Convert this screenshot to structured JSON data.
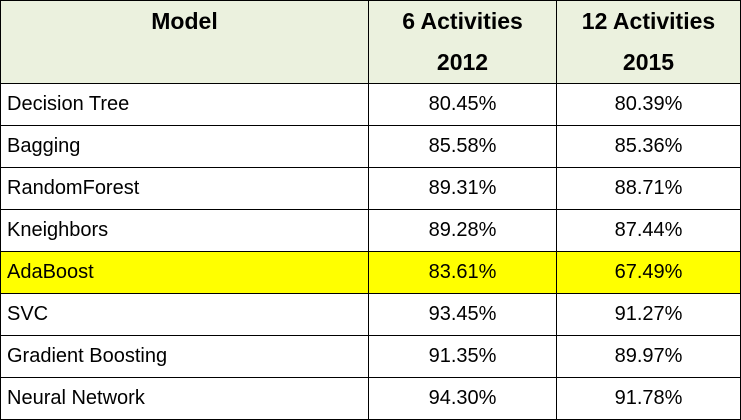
{
  "chart_data": {
    "type": "table",
    "headers": {
      "model": "Model",
      "col1": [
        "6 Activities",
        "2012"
      ],
      "col2": [
        "12 Activities",
        "2015"
      ]
    },
    "rows": [
      {
        "model": "Decision Tree",
        "v1": "80.45%",
        "v2": "80.39%"
      },
      {
        "model": "Bagging",
        "v1": "85.58%",
        "v2": "85.36%"
      },
      {
        "model": "RandomForest",
        "v1": "89.31%",
        "v2": "88.71%"
      },
      {
        "model": "Kneighbors",
        "v1": "89.28%",
        "v2": "87.44%"
      },
      {
        "model": "AdaBoost",
        "v1": "83.61%",
        "v2": "67.49%",
        "highlight": true
      },
      {
        "model": "SVC",
        "v1": "93.45%",
        "v2": "91.27%"
      },
      {
        "model": "Gradient Boosting",
        "v1": "91.35%",
        "v2": "89.97%"
      },
      {
        "model": "Neural Network",
        "v1": "94.30%",
        "v2": "91.78%"
      }
    ]
  },
  "colors": {
    "header_bg": "#ebf1de",
    "highlight_bg": "#ffff00",
    "border": "#000000"
  }
}
